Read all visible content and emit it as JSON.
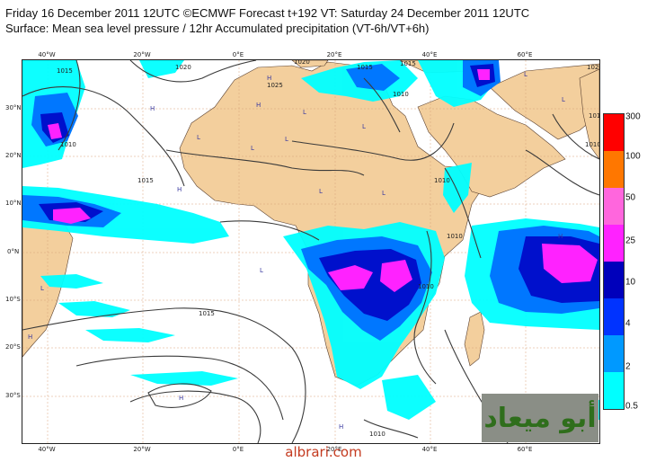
{
  "header": {
    "line1": "Friday 16 December 2011 12UTC ©ECMWF Forecast t+192 VT: Saturday 24 December 2011 12UTC",
    "line2": "Surface: Mean sea level pressure / 12hr Accumulated precipitation (VT-6h/VT+6h)"
  },
  "map": {
    "lon_labels": [
      "40°W",
      "20°W",
      "0°E",
      "20°E",
      "40°E",
      "60°E"
    ],
    "lat_labels": [
      "30°N",
      "20°N",
      "10°N",
      "0°N",
      "10°S",
      "20°S",
      "30°S"
    ],
    "isobar_labels": [
      "1015",
      "1020",
      "1010",
      "1025",
      "1020",
      "1015",
      "1015",
      "1010",
      "1010",
      "1015",
      "1020",
      "1015",
      "1010",
      "1010",
      "1010",
      "1015",
      "1010"
    ],
    "pressure_marks": [
      "H",
      "H",
      "L",
      "L",
      "L",
      "H",
      "L",
      "H",
      "L",
      "L",
      "H",
      "L",
      "H",
      "L",
      "H",
      "H",
      "L",
      "L",
      "L"
    ],
    "colors": {
      "ocean": "#ffffff",
      "land": "#f3cf9d",
      "isobar": "#3a3a3a",
      "grid": "#d9a27b"
    }
  },
  "legend": {
    "labels": [
      "0.5",
      "2",
      "4",
      "10",
      "25",
      "50",
      "100",
      "300"
    ],
    "colors": [
      "#00ffff",
      "#0099ff",
      "#0033ff",
      "#0000bb",
      "#ff22ff",
      "#ff66dd",
      "#ff7700",
      "#ff0000"
    ]
  },
  "watermark": {
    "logo_text": "أبو ميعاد",
    "site": "albrari.com"
  }
}
